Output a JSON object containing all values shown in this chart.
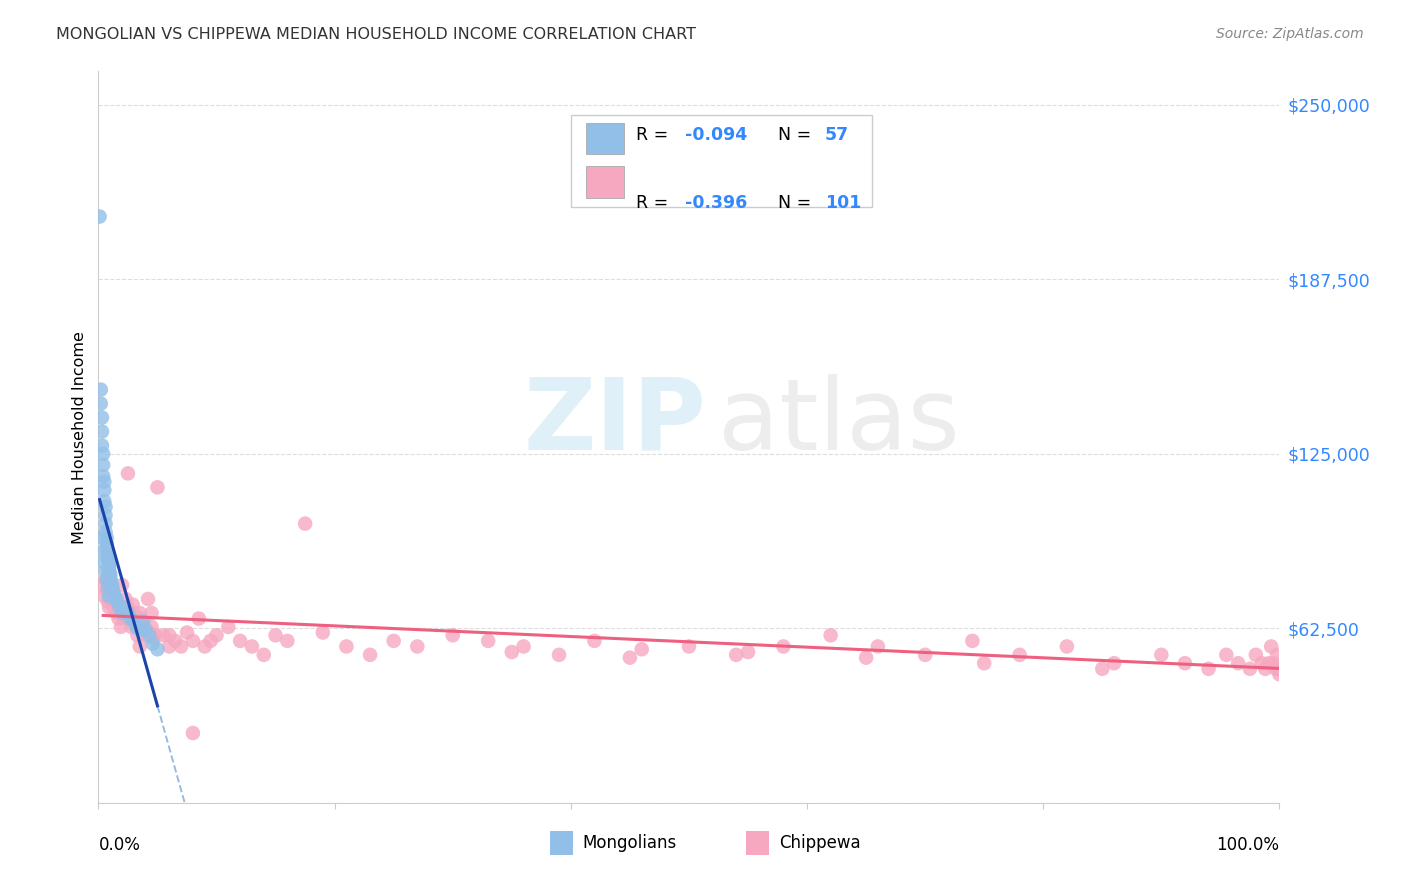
{
  "title": "MONGOLIAN VS CHIPPEWA MEDIAN HOUSEHOLD INCOME CORRELATION CHART",
  "source": "Source: ZipAtlas.com",
  "ylabel": "Median Household Income",
  "x_range": [
    0.0,
    1.0
  ],
  "y_range": [
    0,
    262000
  ],
  "y_ticks": [
    0,
    62500,
    125000,
    187500,
    250000
  ],
  "y_tick_labels": [
    "",
    "$62,500",
    "$125,000",
    "$187,500",
    "$250,000"
  ],
  "mongolian_color": "#92bfe8",
  "chippewa_color": "#f5a8bf",
  "mongolian_line_color": "#1a44aa",
  "chippewa_line_color": "#ee6080",
  "dashed_line_color": "#99bbdd",
  "background_color": "#ffffff",
  "grid_color": "#dddddd",
  "legend_R1": "-0.094",
  "legend_N1": "57",
  "legend_R2": "-0.396",
  "legend_N2": "101",
  "text_blue": "#3388ff",
  "mongolian_x": [
    0.001,
    0.002,
    0.002,
    0.003,
    0.003,
    0.003,
    0.004,
    0.004,
    0.004,
    0.005,
    0.005,
    0.005,
    0.006,
    0.006,
    0.006,
    0.006,
    0.007,
    0.007,
    0.007,
    0.008,
    0.008,
    0.008,
    0.009,
    0.009,
    0.009,
    0.009,
    0.01,
    0.01,
    0.01,
    0.011,
    0.011,
    0.012,
    0.012,
    0.013,
    0.014,
    0.015,
    0.016,
    0.018,
    0.02,
    0.022,
    0.025,
    0.027,
    0.03,
    0.032,
    0.035,
    0.038,
    0.04,
    0.043,
    0.046,
    0.05,
    0.003,
    0.004,
    0.005,
    0.006,
    0.007,
    0.008,
    0.009
  ],
  "mongolian_y": [
    210000,
    148000,
    143000,
    138000,
    133000,
    128000,
    125000,
    121000,
    117000,
    115000,
    112000,
    108000,
    106000,
    103000,
    100000,
    97000,
    95000,
    93000,
    91000,
    89000,
    88000,
    87000,
    86000,
    85000,
    84000,
    83000,
    82000,
    81000,
    80000,
    79000,
    78000,
    77000,
    76000,
    75000,
    74000,
    73000,
    72000,
    70000,
    68000,
    70000,
    68000,
    66000,
    65000,
    63000,
    62000,
    65000,
    62000,
    60000,
    57000,
    55000,
    95000,
    90000,
    86000,
    83000,
    80000,
    77000,
    74000
  ],
  "chippewa_x": [
    0.004,
    0.005,
    0.006,
    0.007,
    0.008,
    0.009,
    0.01,
    0.011,
    0.012,
    0.013,
    0.015,
    0.016,
    0.017,
    0.018,
    0.019,
    0.02,
    0.021,
    0.022,
    0.023,
    0.025,
    0.027,
    0.028,
    0.029,
    0.03,
    0.031,
    0.033,
    0.035,
    0.036,
    0.038,
    0.04,
    0.042,
    0.043,
    0.045,
    0.046,
    0.048,
    0.05,
    0.055,
    0.06,
    0.065,
    0.07,
    0.075,
    0.08,
    0.085,
    0.09,
    0.095,
    0.1,
    0.11,
    0.12,
    0.13,
    0.14,
    0.15,
    0.16,
    0.175,
    0.19,
    0.21,
    0.23,
    0.25,
    0.27,
    0.3,
    0.33,
    0.36,
    0.39,
    0.42,
    0.46,
    0.5,
    0.54,
    0.58,
    0.62,
    0.66,
    0.7,
    0.74,
    0.78,
    0.82,
    0.86,
    0.9,
    0.92,
    0.94,
    0.955,
    0.965,
    0.975,
    0.98,
    0.985,
    0.988,
    0.991,
    0.993,
    0.995,
    0.997,
    0.998,
    0.999,
    1.0,
    0.35,
    0.45,
    0.55,
    0.65,
    0.75,
    0.85,
    0.025,
    0.035,
    0.045,
    0.06,
    0.08
  ],
  "chippewa_y": [
    78000,
    74000,
    80000,
    76000,
    72000,
    70000,
    78000,
    74000,
    72000,
    70000,
    68000,
    71000,
    66000,
    70000,
    63000,
    78000,
    68000,
    66000,
    73000,
    70000,
    66000,
    63000,
    71000,
    68000,
    66000,
    60000,
    68000,
    66000,
    64000,
    60000,
    73000,
    61000,
    63000,
    59000,
    60000,
    113000,
    60000,
    60000,
    58000,
    56000,
    61000,
    58000,
    66000,
    56000,
    58000,
    60000,
    63000,
    58000,
    56000,
    53000,
    60000,
    58000,
    100000,
    61000,
    56000,
    53000,
    58000,
    56000,
    60000,
    58000,
    56000,
    53000,
    58000,
    55000,
    56000,
    53000,
    56000,
    60000,
    56000,
    53000,
    58000,
    53000,
    56000,
    50000,
    53000,
    50000,
    48000,
    53000,
    50000,
    48000,
    53000,
    50000,
    48000,
    50000,
    56000,
    50000,
    48000,
    53000,
    48000,
    46000,
    54000,
    52000,
    54000,
    52000,
    50000,
    48000,
    118000,
    56000,
    68000,
    56000,
    25000
  ]
}
